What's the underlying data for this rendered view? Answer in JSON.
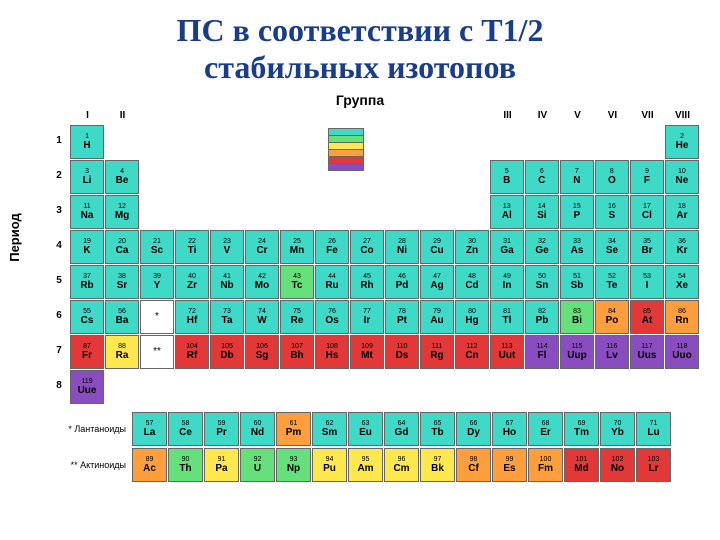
{
  "title_line1": "ПС в соответствии с Т1/2",
  "title_line2": "стабильных изотопов",
  "group_label": "Группа",
  "period_label": "Период",
  "groups": [
    "I",
    "II",
    "",
    "",
    "",
    "",
    "",
    "",
    "",
    "",
    "",
    "",
    "III",
    "IV",
    "V",
    "VI",
    "VII",
    "VIII"
  ],
  "periods": [
    "1",
    "2",
    "3",
    "4",
    "5",
    "6",
    "7",
    "8"
  ],
  "lanth_label": "* Лантаноиды",
  "act_label": "** Актиноиды",
  "colors": {
    "c1": "#3fd9c7",
    "c2": "#66e07a",
    "c3": "#ffe84d",
    "c4": "#ff9e3d",
    "c5": "#e23838",
    "c6": "#8a4dbf",
    "bg": "#ffffff",
    "border": "#666666",
    "title": "#1a3d8a"
  },
  "legend_colors": [
    "#3fd9c7",
    "#66e07a",
    "#ffe84d",
    "#ff9e3d",
    "#e23838",
    "#8a4dbf"
  ],
  "rows": [
    [
      {
        "n": "1",
        "s": "H",
        "c": "c1"
      },
      null,
      null,
      null,
      null,
      null,
      null,
      null,
      null,
      null,
      null,
      null,
      null,
      null,
      null,
      null,
      null,
      {
        "n": "2",
        "s": "He",
        "c": "c1"
      }
    ],
    [
      {
        "n": "3",
        "s": "Li",
        "c": "c1"
      },
      {
        "n": "4",
        "s": "Be",
        "c": "c1"
      },
      null,
      null,
      null,
      null,
      null,
      null,
      null,
      null,
      null,
      null,
      {
        "n": "5",
        "s": "B",
        "c": "c1"
      },
      {
        "n": "6",
        "s": "C",
        "c": "c1"
      },
      {
        "n": "7",
        "s": "N",
        "c": "c1"
      },
      {
        "n": "8",
        "s": "O",
        "c": "c1"
      },
      {
        "n": "9",
        "s": "F",
        "c": "c1"
      },
      {
        "n": "10",
        "s": "Ne",
        "c": "c1"
      }
    ],
    [
      {
        "n": "11",
        "s": "Na",
        "c": "c1"
      },
      {
        "n": "12",
        "s": "Mg",
        "c": "c1"
      },
      null,
      null,
      null,
      null,
      null,
      null,
      null,
      null,
      null,
      null,
      {
        "n": "13",
        "s": "Al",
        "c": "c1"
      },
      {
        "n": "14",
        "s": "Si",
        "c": "c1"
      },
      {
        "n": "15",
        "s": "P",
        "c": "c1"
      },
      {
        "n": "16",
        "s": "S",
        "c": "c1"
      },
      {
        "n": "17",
        "s": "Cl",
        "c": "c1"
      },
      {
        "n": "18",
        "s": "Ar",
        "c": "c1"
      }
    ],
    [
      {
        "n": "19",
        "s": "K",
        "c": "c1"
      },
      {
        "n": "20",
        "s": "Ca",
        "c": "c1"
      },
      {
        "n": "21",
        "s": "Sc",
        "c": "c1"
      },
      {
        "n": "22",
        "s": "Ti",
        "c": "c1"
      },
      {
        "n": "23",
        "s": "V",
        "c": "c1"
      },
      {
        "n": "24",
        "s": "Cr",
        "c": "c1"
      },
      {
        "n": "25",
        "s": "Mn",
        "c": "c1"
      },
      {
        "n": "26",
        "s": "Fe",
        "c": "c1"
      },
      {
        "n": "27",
        "s": "Co",
        "c": "c1"
      },
      {
        "n": "28",
        "s": "Ni",
        "c": "c1"
      },
      {
        "n": "29",
        "s": "Cu",
        "c": "c1"
      },
      {
        "n": "30",
        "s": "Zn",
        "c": "c1"
      },
      {
        "n": "31",
        "s": "Ga",
        "c": "c1"
      },
      {
        "n": "32",
        "s": "Ge",
        "c": "c1"
      },
      {
        "n": "33",
        "s": "As",
        "c": "c1"
      },
      {
        "n": "34",
        "s": "Se",
        "c": "c1"
      },
      {
        "n": "35",
        "s": "Br",
        "c": "c1"
      },
      {
        "n": "36",
        "s": "Kr",
        "c": "c1"
      }
    ],
    [
      {
        "n": "37",
        "s": "Rb",
        "c": "c1"
      },
      {
        "n": "38",
        "s": "Sr",
        "c": "c1"
      },
      {
        "n": "39",
        "s": "Y",
        "c": "c1"
      },
      {
        "n": "40",
        "s": "Zr",
        "c": "c1"
      },
      {
        "n": "41",
        "s": "Nb",
        "c": "c1"
      },
      {
        "n": "42",
        "s": "Mo",
        "c": "c1"
      },
      {
        "n": "43",
        "s": "Tc",
        "c": "c2"
      },
      {
        "n": "44",
        "s": "Ru",
        "c": "c1"
      },
      {
        "n": "45",
        "s": "Rh",
        "c": "c1"
      },
      {
        "n": "46",
        "s": "Pd",
        "c": "c1"
      },
      {
        "n": "47",
        "s": "Ag",
        "c": "c1"
      },
      {
        "n": "48",
        "s": "Cd",
        "c": "c1"
      },
      {
        "n": "49",
        "s": "In",
        "c": "c1"
      },
      {
        "n": "50",
        "s": "Sn",
        "c": "c1"
      },
      {
        "n": "51",
        "s": "Sb",
        "c": "c1"
      },
      {
        "n": "52",
        "s": "Te",
        "c": "c1"
      },
      {
        "n": "53",
        "s": "I",
        "c": "c1"
      },
      {
        "n": "54",
        "s": "Xe",
        "c": "c1"
      }
    ],
    [
      {
        "n": "55",
        "s": "Cs",
        "c": "c1"
      },
      {
        "n": "56",
        "s": "Ba",
        "c": "c1"
      },
      {
        "astk": "*"
      },
      {
        "n": "72",
        "s": "Hf",
        "c": "c1"
      },
      {
        "n": "73",
        "s": "Ta",
        "c": "c1"
      },
      {
        "n": "74",
        "s": "W",
        "c": "c1"
      },
      {
        "n": "75",
        "s": "Re",
        "c": "c1"
      },
      {
        "n": "76",
        "s": "Os",
        "c": "c1"
      },
      {
        "n": "77",
        "s": "Ir",
        "c": "c1"
      },
      {
        "n": "78",
        "s": "Pt",
        "c": "c1"
      },
      {
        "n": "79",
        "s": "Au",
        "c": "c1"
      },
      {
        "n": "80",
        "s": "Hg",
        "c": "c1"
      },
      {
        "n": "81",
        "s": "Tl",
        "c": "c1"
      },
      {
        "n": "82",
        "s": "Pb",
        "c": "c1"
      },
      {
        "n": "83",
        "s": "Bi",
        "c": "c2"
      },
      {
        "n": "84",
        "s": "Po",
        "c": "c4"
      },
      {
        "n": "85",
        "s": "At",
        "c": "c5"
      },
      {
        "n": "86",
        "s": "Rn",
        "c": "c4"
      }
    ],
    [
      {
        "n": "87",
        "s": "Fr",
        "c": "c5"
      },
      {
        "n": "88",
        "s": "Ra",
        "c": "c3"
      },
      {
        "astk": "**"
      },
      {
        "n": "104",
        "s": "Rf",
        "c": "c5"
      },
      {
        "n": "105",
        "s": "Db",
        "c": "c5"
      },
      {
        "n": "106",
        "s": "Sg",
        "c": "c5"
      },
      {
        "n": "107",
        "s": "Bh",
        "c": "c5"
      },
      {
        "n": "108",
        "s": "Hs",
        "c": "c5"
      },
      {
        "n": "109",
        "s": "Mt",
        "c": "c5"
      },
      {
        "n": "110",
        "s": "Ds",
        "c": "c5"
      },
      {
        "n": "111",
        "s": "Rg",
        "c": "c5"
      },
      {
        "n": "112",
        "s": "Cn",
        "c": "c5"
      },
      {
        "n": "113",
        "s": "Uut",
        "c": "c5"
      },
      {
        "n": "114",
        "s": "Fl",
        "c": "c6"
      },
      {
        "n": "115",
        "s": "Uup",
        "c": "c6"
      },
      {
        "n": "116",
        "s": "Lv",
        "c": "c6"
      },
      {
        "n": "117",
        "s": "Uus",
        "c": "c6"
      },
      {
        "n": "118",
        "s": "Uuo",
        "c": "c6"
      }
    ],
    [
      {
        "n": "119",
        "s": "Uue",
        "c": "c6"
      },
      null,
      null,
      null,
      null,
      null,
      null,
      null,
      null,
      null,
      null,
      null,
      null,
      null,
      null,
      null,
      null,
      null
    ]
  ],
  "lanthanoids": [
    {
      "n": "57",
      "s": "La",
      "c": "c1"
    },
    {
      "n": "58",
      "s": "Ce",
      "c": "c1"
    },
    {
      "n": "59",
      "s": "Pr",
      "c": "c1"
    },
    {
      "n": "60",
      "s": "Nd",
      "c": "c1"
    },
    {
      "n": "61",
      "s": "Pm",
      "c": "c4"
    },
    {
      "n": "62",
      "s": "Sm",
      "c": "c1"
    },
    {
      "n": "63",
      "s": "Eu",
      "c": "c1"
    },
    {
      "n": "64",
      "s": "Gd",
      "c": "c1"
    },
    {
      "n": "65",
      "s": "Tb",
      "c": "c1"
    },
    {
      "n": "66",
      "s": "Dy",
      "c": "c1"
    },
    {
      "n": "67",
      "s": "Ho",
      "c": "c1"
    },
    {
      "n": "68",
      "s": "Er",
      "c": "c1"
    },
    {
      "n": "69",
      "s": "Tm",
      "c": "c1"
    },
    {
      "n": "70",
      "s": "Yb",
      "c": "c1"
    },
    {
      "n": "71",
      "s": "Lu",
      "c": "c1"
    }
  ],
  "actinoids": [
    {
      "n": "89",
      "s": "Ac",
      "c": "c4"
    },
    {
      "n": "90",
      "s": "Th",
      "c": "c2"
    },
    {
      "n": "91",
      "s": "Pa",
      "c": "c3"
    },
    {
      "n": "92",
      "s": "U",
      "c": "c2"
    },
    {
      "n": "93",
      "s": "Np",
      "c": "c2"
    },
    {
      "n": "94",
      "s": "Pu",
      "c": "c3"
    },
    {
      "n": "95",
      "s": "Am",
      "c": "c3"
    },
    {
      "n": "96",
      "s": "Cm",
      "c": "c3"
    },
    {
      "n": "97",
      "s": "Bk",
      "c": "c3"
    },
    {
      "n": "98",
      "s": "Cf",
      "c": "c4"
    },
    {
      "n": "99",
      "s": "Es",
      "c": "c4"
    },
    {
      "n": "100",
      "s": "Fm",
      "c": "c4"
    },
    {
      "n": "101",
      "s": "Md",
      "c": "c5"
    },
    {
      "n": "102",
      "s": "No",
      "c": "c5"
    },
    {
      "n": "103",
      "s": "Lr",
      "c": "c5"
    }
  ]
}
